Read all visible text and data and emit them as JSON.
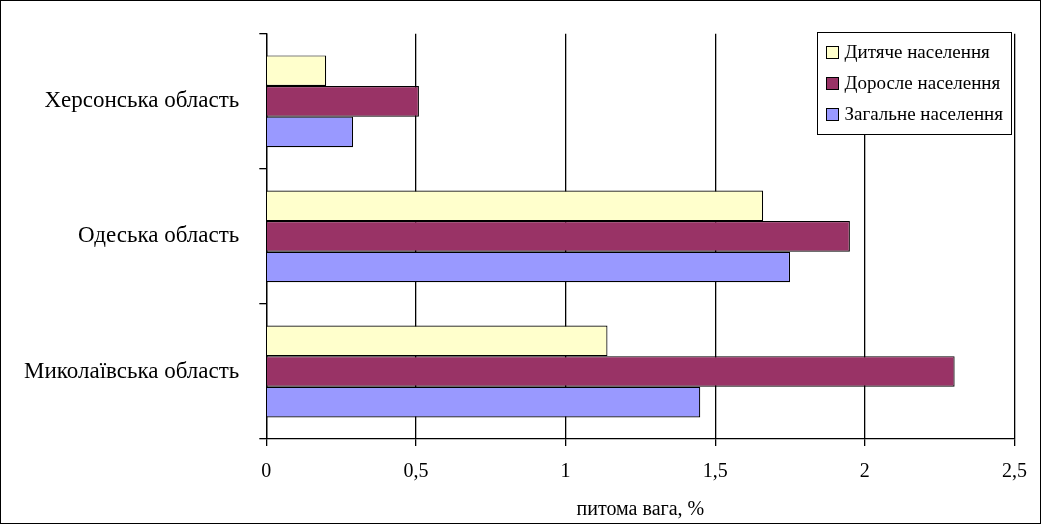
{
  "chart_data": {
    "type": "bar",
    "orientation": "horizontal",
    "xlabel": "питома вага, %",
    "categories": [
      "Херсонська область",
      "Одеська область",
      "Миколаївська область"
    ],
    "series": [
      {
        "name": "Дитяче населення",
        "color": "#ffffcc",
        "values": [
          0.2,
          1.66,
          1.14
        ]
      },
      {
        "name": "Доросле населення",
        "color": "#993366",
        "values": [
          0.51,
          1.95,
          2.3
        ]
      },
      {
        "name": "Загальне населення",
        "color": "#9999ff",
        "values": [
          0.29,
          1.75,
          1.45
        ]
      }
    ],
    "xlim": [
      0,
      2.5
    ],
    "xticks": [
      0,
      {
        "value": 0.5,
        "label": "0,5"
      },
      1,
      {
        "value": 1.5,
        "label": "1,5"
      },
      2,
      {
        "value": 2.5,
        "label": "2,5"
      }
    ],
    "grid": "x",
    "legend": "top right"
  }
}
